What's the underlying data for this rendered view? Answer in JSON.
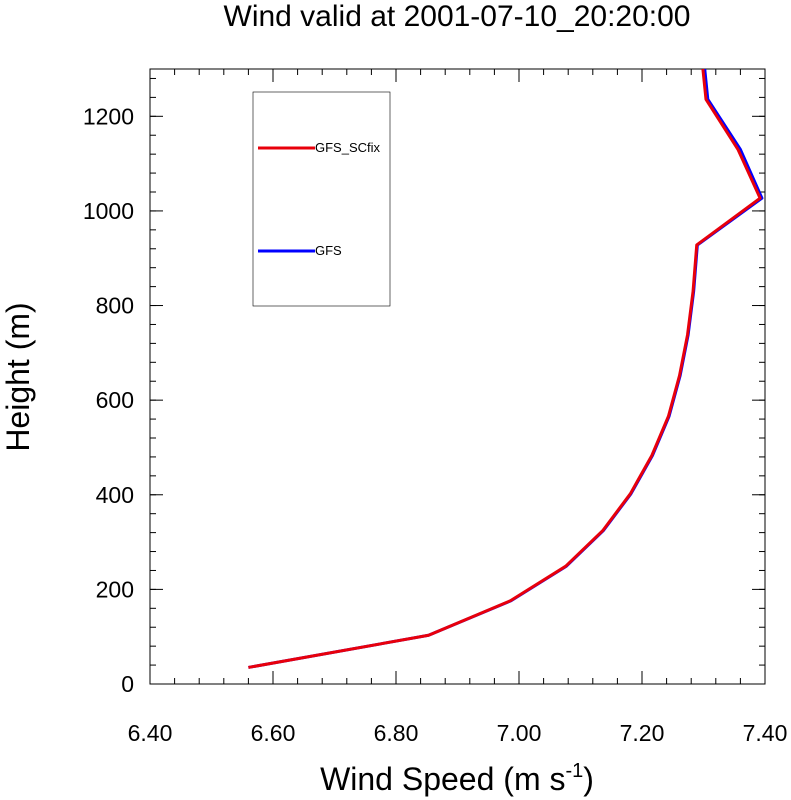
{
  "chart_data": {
    "type": "line",
    "title": "Wind valid at 2001-07-10_20:20:00",
    "xlabel": "Wind Speed (m s",
    "xlabel_superscript": "-1",
    "xlabel_suffix": ")",
    "ylabel": "Height (m)",
    "xlim": [
      6.4,
      7.4
    ],
    "ylim": [
      0,
      1300
    ],
    "x_ticks": [
      6.4,
      6.6,
      6.8,
      7.0,
      7.2,
      7.4
    ],
    "x_tick_labels": [
      "6.40",
      "6.60",
      "6.80",
      "7.00",
      "7.20",
      "7.40"
    ],
    "y_ticks": [
      0,
      200,
      400,
      600,
      800,
      1000,
      1200
    ],
    "y_tick_labels": [
      "0",
      "200",
      "400",
      "600",
      "800",
      "1000",
      "1200"
    ],
    "grid": false,
    "legend_placement": "top-left",
    "series": [
      {
        "name": "GFS",
        "color": "#0000ff",
        "points": [
          [
            6.56,
            35
          ],
          [
            6.853,
            103
          ],
          [
            6.987,
            176
          ],
          [
            7.077,
            249
          ],
          [
            7.137,
            324
          ],
          [
            7.182,
            402
          ],
          [
            7.217,
            483
          ],
          [
            7.244,
            566
          ],
          [
            7.262,
            652
          ],
          [
            7.275,
            738
          ],
          [
            7.284,
            830
          ],
          [
            7.29,
            928
          ],
          [
            7.395,
            1027
          ],
          [
            7.36,
            1130
          ],
          [
            7.307,
            1236
          ],
          [
            7.302,
            1300
          ]
        ]
      },
      {
        "name": "GFS_SCfix",
        "color": "#e8000b",
        "points": [
          [
            6.56,
            35
          ],
          [
            6.853,
            103
          ],
          [
            6.986,
            176
          ],
          [
            7.076,
            249
          ],
          [
            7.136,
            324
          ],
          [
            7.181,
            402
          ],
          [
            7.216,
            483
          ],
          [
            7.243,
            566
          ],
          [
            7.261,
            652
          ],
          [
            7.274,
            738
          ],
          [
            7.283,
            830
          ],
          [
            7.289,
            928
          ],
          [
            7.392,
            1027
          ],
          [
            7.356,
            1130
          ],
          [
            7.304,
            1236
          ],
          [
            7.299,
            1300
          ]
        ]
      }
    ],
    "legend": [
      {
        "name": "GFS_SCfix",
        "color": "#e8000b"
      },
      {
        "name": "GFS",
        "color": "#0000ff"
      }
    ]
  }
}
